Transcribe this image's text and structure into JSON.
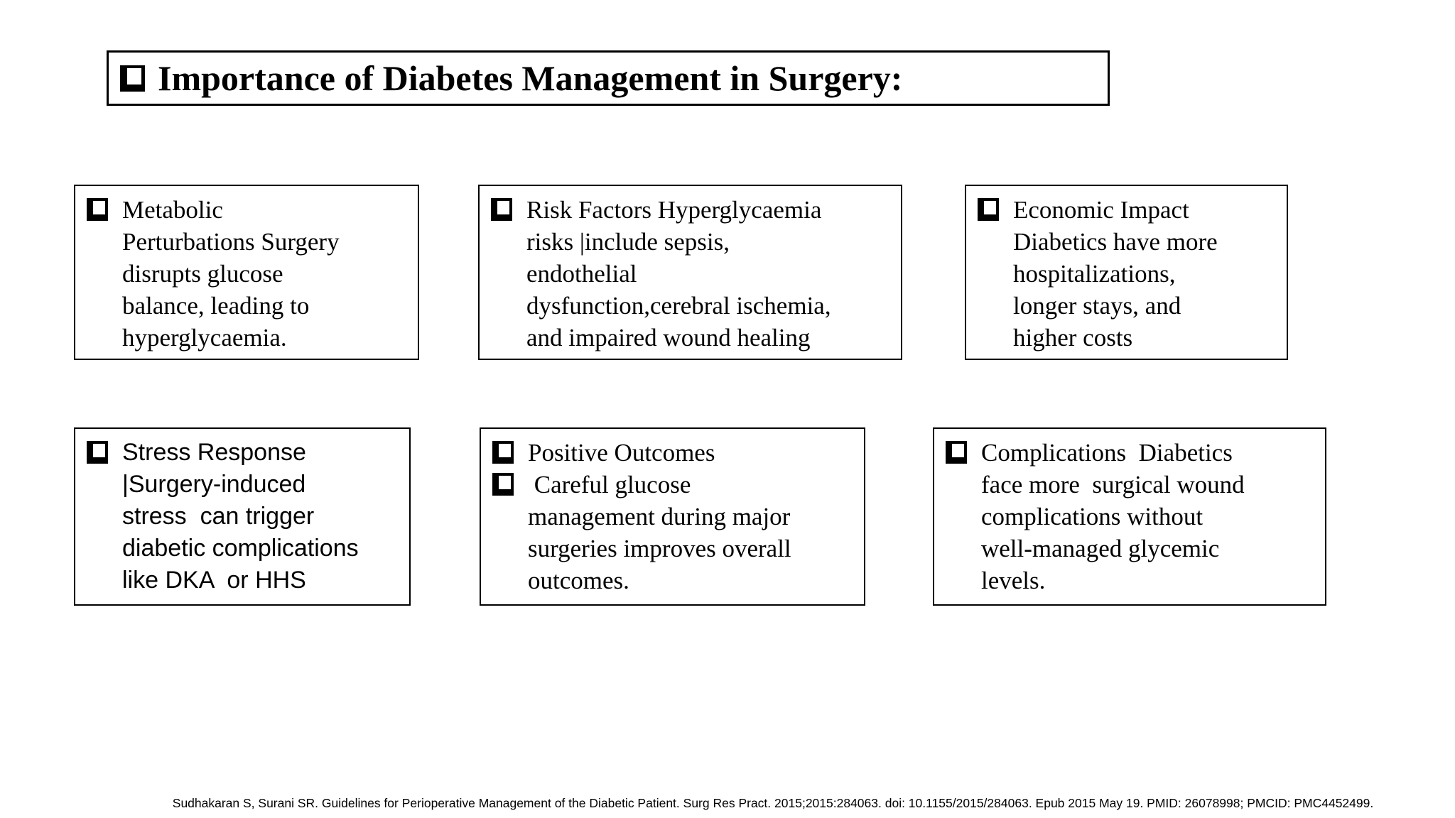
{
  "slide": {
    "colors": {
      "background": "#ffffff",
      "ink": "#000000",
      "border": "#000000"
    },
    "title": {
      "text": "Importance of Diabetes Management in Surgery:"
    },
    "boxes": [
      {
        "name": "metabolic-perturbations",
        "items": [
          {
            "text": "Metabolic\nPerturbations Surgery\ndisrupts glucose\nbalance, leading to\nhyperglycaemia."
          }
        ]
      },
      {
        "name": "risk-factors",
        "items": [
          {
            "text": "Risk Factors Hyperglycaemia\nrisks |include sepsis,\nendothelial\ndysfunction,cerebral ischemia,\nand impaired wound healing"
          }
        ]
      },
      {
        "name": "economic-impact",
        "items": [
          {
            "text": "Economic Impact\nDiabetics have more\nhospitalizations,\nlonger stays, and\nhigher costs"
          }
        ]
      },
      {
        "name": "stress-response",
        "items": [
          {
            "text": "Stress Response\n|Surgery-induced\nstress  can trigger\ndiabetic complications\nlike DKA  or HHS"
          }
        ]
      },
      {
        "name": "positive-outcomes",
        "items": [
          {
            "text": "Positive Outcomes"
          },
          {
            "text": " Careful glucose\nmanagement during major\nsurgeries improves overall\noutcomes."
          }
        ]
      },
      {
        "name": "complications",
        "items": [
          {
            "text": "Complications  Diabetics\nface more  surgical wound\ncomplications without\nwell-managed glycemic\nlevels."
          }
        ]
      }
    ],
    "citation": "Sudhakaran S, Surani SR. Guidelines for Perioperative Management of the Diabetic Patient. Surg Res Pract. 2015;2015:284063. doi: 10.1155/2015/284063. Epub 2015 May 19. PMID: 26078998; PMCID: PMC4452499."
  }
}
